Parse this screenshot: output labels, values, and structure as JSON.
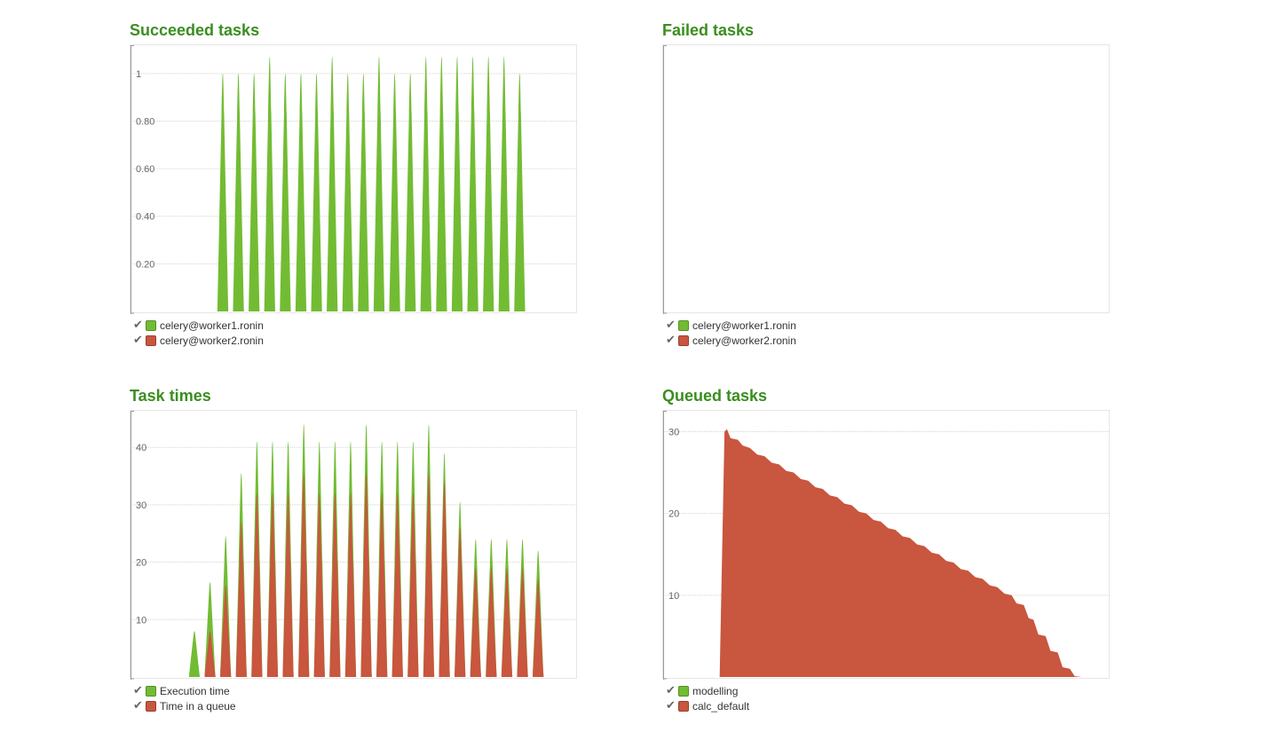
{
  "colors": {
    "title": "#3b8e20",
    "green": "#72bc33",
    "red": "#c9563e",
    "grid": "#d3d3d3",
    "axis": "#999999"
  },
  "charts": [
    {
      "title": "Succeeded tasks",
      "legend": [
        {
          "label": "celery@worker1.ronin",
          "color": "#72bc33"
        },
        {
          "label": "celery@worker2.ronin",
          "color": "#c9563e"
        }
      ],
      "chart_data": {
        "type": "area",
        "ylim": [
          0,
          1.1
        ],
        "yticks": [
          {
            "value": 0.2,
            "label": "0.20"
          },
          {
            "value": 0.4,
            "label": "0.40"
          },
          {
            "value": 0.6,
            "label": "0.60"
          },
          {
            "value": 0.8,
            "label": "0.80"
          },
          {
            "value": 1,
            "label": "1"
          }
        ],
        "series": [
          {
            "color": "#72bc33",
            "points": [
              [
                1,
                0
              ],
              [
                1.5,
                0
              ],
              [
                2,
                0
              ],
              [
                2.5,
                0
              ],
              [
                3,
                0
              ],
              [
                3.5,
                1
              ],
              [
                4,
                0
              ],
              [
                4.5,
                1
              ],
              [
                5,
                0
              ],
              [
                5.5,
                1
              ],
              [
                6,
                0
              ],
              [
                6.5,
                1.07
              ],
              [
                7,
                0
              ],
              [
                7.5,
                1
              ],
              [
                8,
                0
              ],
              [
                8.5,
                1
              ],
              [
                9,
                0
              ],
              [
                9.5,
                1
              ],
              [
                10,
                0
              ],
              [
                10.5,
                1.07
              ],
              [
                11,
                0
              ],
              [
                11.5,
                1
              ],
              [
                12,
                0
              ],
              [
                12.5,
                1
              ],
              [
                13,
                0
              ],
              [
                13.5,
                1.07
              ],
              [
                14,
                0
              ],
              [
                14.5,
                1
              ],
              [
                15,
                0
              ],
              [
                15.5,
                1
              ],
              [
                16,
                0
              ],
              [
                16.5,
                1.07
              ],
              [
                17,
                0
              ],
              [
                17.5,
                1.07
              ],
              [
                18,
                0
              ],
              [
                18.5,
                1.07
              ],
              [
                19,
                0
              ],
              [
                19.5,
                1.07
              ],
              [
                20,
                0
              ],
              [
                20.5,
                1.07
              ],
              [
                21,
                0
              ],
              [
                21.5,
                1.07
              ],
              [
                22,
                0
              ],
              [
                22.5,
                1
              ],
              [
                23,
                0
              ]
            ]
          },
          {
            "color": "#c9563e",
            "points": []
          }
        ]
      }
    },
    {
      "title": "Failed tasks",
      "legend": [
        {
          "label": "celery@worker1.ronin",
          "color": "#72bc33"
        },
        {
          "label": "celery@worker2.ronin",
          "color": "#c9563e"
        }
      ],
      "chart_data": {
        "type": "area",
        "ylim": [
          0,
          1
        ],
        "yticks": [],
        "series": [
          {
            "color": "#72bc33",
            "points": []
          },
          {
            "color": "#c9563e",
            "points": []
          }
        ]
      }
    },
    {
      "title": "Task times",
      "legend": [
        {
          "label": "Execution time",
          "color": "#72bc33"
        },
        {
          "label": "Time in a queue",
          "color": "#c9563e"
        }
      ],
      "chart_data": {
        "type": "area",
        "ylim": [
          0,
          45.6
        ],
        "yticks": [
          {
            "value": 10,
            "label": "10"
          },
          {
            "value": 20,
            "label": "20"
          },
          {
            "value": 30,
            "label": "30"
          },
          {
            "value": 40,
            "label": "40"
          }
        ],
        "series": [
          {
            "color": "#72bc33",
            "points": [
              [
                1,
                0
              ],
              [
                3,
                0
              ],
              [
                3.5,
                8
              ],
              [
                4,
                0
              ],
              [
                4.5,
                16.5
              ],
              [
                5,
                0
              ],
              [
                5.5,
                24.5
              ],
              [
                6,
                0
              ],
              [
                6.5,
                35.5
              ],
              [
                7,
                0
              ],
              [
                7.5,
                41
              ],
              [
                8,
                0
              ],
              [
                8.5,
                41
              ],
              [
                9,
                0
              ],
              [
                9.5,
                41
              ],
              [
                10,
                0
              ],
              [
                10.5,
                44
              ],
              [
                11,
                0
              ],
              [
                11.5,
                41
              ],
              [
                12,
                0
              ],
              [
                12.5,
                41
              ],
              [
                13,
                0
              ],
              [
                13.5,
                41
              ],
              [
                14,
                0
              ],
              [
                14.5,
                44
              ],
              [
                15,
                0
              ],
              [
                15.5,
                41
              ],
              [
                16,
                0
              ],
              [
                16.5,
                41
              ],
              [
                17,
                0
              ],
              [
                17.5,
                41
              ],
              [
                18,
                0
              ],
              [
                18.5,
                44
              ],
              [
                19,
                0
              ],
              [
                19.5,
                39
              ],
              [
                20,
                0
              ],
              [
                20.5,
                30.5
              ],
              [
                21,
                0
              ],
              [
                21.5,
                24
              ],
              [
                22,
                0
              ],
              [
                22.5,
                24
              ],
              [
                23,
                0
              ],
              [
                23.5,
                24
              ],
              [
                24,
                0
              ],
              [
                24.5,
                24
              ],
              [
                25,
                0
              ],
              [
                25.5,
                22
              ],
              [
                26,
                0
              ]
            ]
          },
          {
            "color": "#c9563e",
            "points": [
              [
                1,
                0
              ],
              [
                3,
                0
              ],
              [
                4,
                0
              ],
              [
                4.5,
                8
              ],
              [
                5,
                0
              ],
              [
                5.5,
                16
              ],
              [
                6,
                0
              ],
              [
                6.5,
                27
              ],
              [
                7,
                0
              ],
              [
                7.5,
                32
              ],
              [
                8,
                0
              ],
              [
                8.5,
                32
              ],
              [
                9,
                0
              ],
              [
                9.5,
                32
              ],
              [
                10,
                0
              ],
              [
                10.5,
                35.5
              ],
              [
                11,
                0
              ],
              [
                11.5,
                32
              ],
              [
                12,
                0
              ],
              [
                12.5,
                32
              ],
              [
                13,
                0
              ],
              [
                13.5,
                32
              ],
              [
                14,
                0
              ],
              [
                14.5,
                35.5
              ],
              [
                15,
                0
              ],
              [
                15.5,
                32
              ],
              [
                16,
                0
              ],
              [
                16.5,
                32
              ],
              [
                17,
                0
              ],
              [
                17.5,
                32
              ],
              [
                18,
                0
              ],
              [
                18.5,
                35.5
              ],
              [
                19,
                0
              ],
              [
                19.5,
                34
              ],
              [
                20,
                0
              ],
              [
                20.5,
                26
              ],
              [
                21,
                0
              ],
              [
                21.5,
                19
              ],
              [
                22,
                0
              ],
              [
                22.5,
                19
              ],
              [
                23,
                0
              ],
              [
                23.5,
                19
              ],
              [
                24,
                0
              ],
              [
                24.5,
                19
              ],
              [
                25,
                0
              ],
              [
                25.5,
                17
              ],
              [
                26,
                0
              ]
            ]
          }
        ]
      }
    },
    {
      "title": "Queued tasks",
      "legend": [
        {
          "label": "modelling",
          "color": "#72bc33"
        },
        {
          "label": "calc_default",
          "color": "#c9563e"
        }
      ],
      "chart_data": {
        "type": "area",
        "ylim": [
          0,
          32
        ],
        "yticks": [
          {
            "value": 10,
            "label": "10"
          },
          {
            "value": 20,
            "label": "20"
          },
          {
            "value": 30,
            "label": "30"
          }
        ],
        "series": [
          {
            "color": "#72bc33",
            "points": []
          },
          {
            "color": "#c9563e",
            "points": [
              [
                0,
                0
              ],
              [
                1.05,
                0
              ],
              [
                1.25,
                30
              ],
              [
                1.35,
                30.3
              ],
              [
                1.5,
                29.2
              ],
              [
                1.8,
                29
              ],
              [
                2,
                28.3
              ],
              [
                2.3,
                28
              ],
              [
                2.6,
                27.2
              ],
              [
                2.9,
                27
              ],
              [
                3.2,
                26.2
              ],
              [
                3.5,
                26
              ],
              [
                3.8,
                25.2
              ],
              [
                4.1,
                25
              ],
              [
                4.4,
                24.2
              ],
              [
                4.7,
                24
              ],
              [
                5.0,
                23.2
              ],
              [
                5.3,
                23
              ],
              [
                5.6,
                22.2
              ],
              [
                5.9,
                22
              ],
              [
                6.2,
                21.2
              ],
              [
                6.5,
                21
              ],
              [
                6.8,
                20.2
              ],
              [
                7.1,
                20
              ],
              [
                7.4,
                19.2
              ],
              [
                7.7,
                19
              ],
              [
                8.0,
                18.2
              ],
              [
                8.3,
                18
              ],
              [
                8.6,
                17.2
              ],
              [
                8.9,
                17
              ],
              [
                9.2,
                16.2
              ],
              [
                9.5,
                16
              ],
              [
                9.8,
                15.2
              ],
              [
                10.1,
                15
              ],
              [
                10.4,
                14.2
              ],
              [
                10.7,
                14
              ],
              [
                11.0,
                13.2
              ],
              [
                11.3,
                13
              ],
              [
                11.6,
                12.2
              ],
              [
                11.9,
                12
              ],
              [
                12.2,
                11.2
              ],
              [
                12.5,
                11
              ],
              [
                12.8,
                10.2
              ],
              [
                13.1,
                10
              ],
              [
                13.3,
                9
              ],
              [
                13.6,
                8.8
              ],
              [
                13.8,
                7.2
              ],
              [
                14.0,
                7
              ],
              [
                14.2,
                5.2
              ],
              [
                14.5,
                5
              ],
              [
                14.7,
                3.2
              ],
              [
                15.0,
                3
              ],
              [
                15.2,
                1.2
              ],
              [
                15.5,
                1
              ],
              [
                15.7,
                0.1
              ],
              [
                16,
                0
              ]
            ]
          }
        ],
        "xlim": [
          0,
          20
        ]
      }
    }
  ]
}
